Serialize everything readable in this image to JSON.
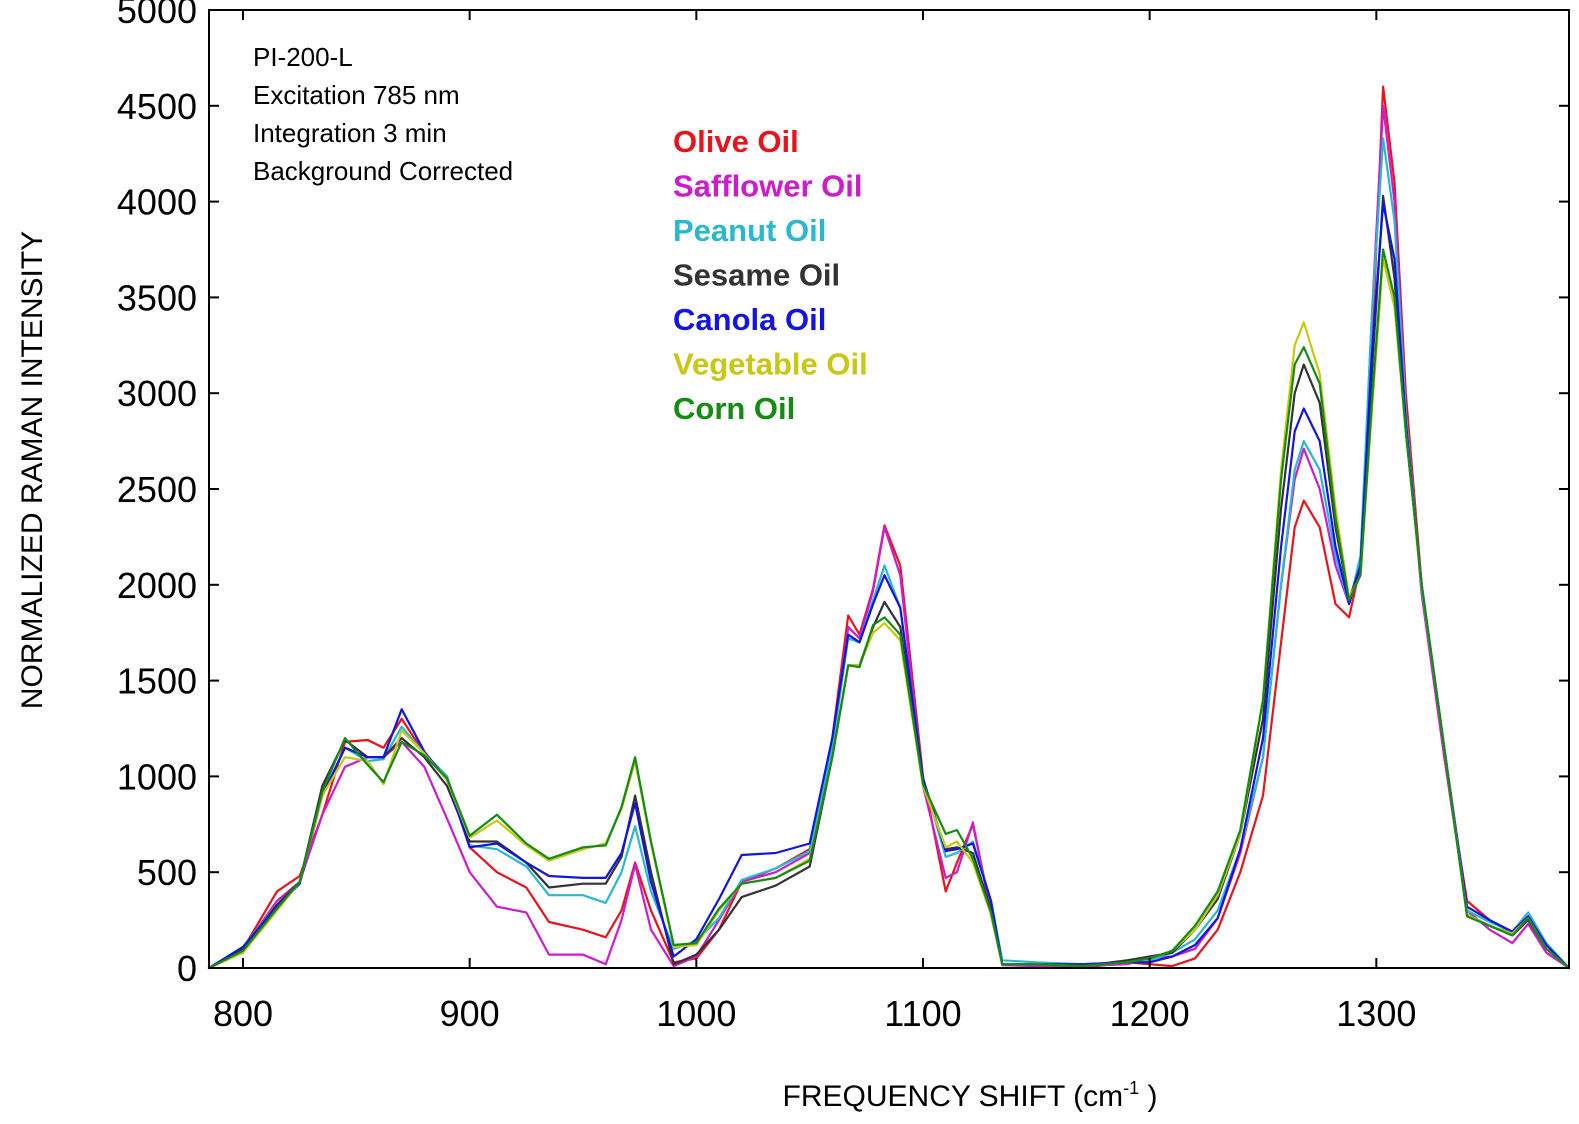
{
  "chart_data": {
    "type": "line",
    "xlabel": "FREQUENCY SHIFT (cm",
    "xlabel_sup": "-1",
    "xlabel_tail": " )",
    "ylabel": "NORMALIZED RAMAN INTENSITY",
    "xlim": [
      785,
      1385
    ],
    "ylim": [
      0,
      5000
    ],
    "x_ticks": [
      800,
      900,
      1000,
      1100,
      1200,
      1300
    ],
    "x_tick_labels": [
      "800",
      "900",
      "1000",
      "1100",
      "1200",
      "1300"
    ],
    "y_ticks": [
      0,
      500,
      1000,
      1500,
      2000,
      2500,
      3000,
      3500,
      4000,
      4500,
      5000
    ],
    "y_tick_labels": [
      "0",
      "500",
      "1000",
      "1500",
      "2000",
      "2500",
      "3000",
      "3500",
      "4000",
      "4500",
      "5000"
    ],
    "grid": false,
    "legend_position": "upper-middle",
    "annotations": [
      "PI-200-L",
      "Excitation 785 nm",
      "Integration 3 min",
      "Background Corrected"
    ],
    "x": [
      785,
      800,
      815,
      825,
      835,
      845,
      855,
      862,
      870,
      880,
      890,
      900,
      912,
      925,
      935,
      950,
      960,
      967,
      973,
      980,
      990,
      1000,
      1010,
      1020,
      1035,
      1050,
      1060,
      1067,
      1072,
      1078,
      1083,
      1090,
      1100,
      1110,
      1115,
      1122,
      1130,
      1135,
      1150,
      1170,
      1190,
      1200,
      1210,
      1220,
      1230,
      1240,
      1250,
      1258,
      1264,
      1268,
      1275,
      1282,
      1288,
      1293,
      1298,
      1303,
      1308,
      1313,
      1320,
      1330,
      1340,
      1350,
      1360,
      1367,
      1375,
      1385
    ],
    "series": [
      {
        "name": "Olive Oil",
        "color": "#e8141c",
        "values": [
          0,
          100,
          400,
          480,
          800,
          1180,
          1190,
          1150,
          1300,
          1120,
          1000,
          630,
          500,
          420,
          240,
          200,
          160,
          300,
          550,
          300,
          30,
          50,
          200,
          450,
          520,
          620,
          1200,
          1840,
          1740,
          1980,
          2310,
          2100,
          1000,
          400,
          550,
          750,
          300,
          20,
          20,
          0,
          30,
          20,
          10,
          50,
          200,
          500,
          900,
          1700,
          2300,
          2440,
          2300,
          1900,
          1830,
          2100,
          3200,
          4600,
          4100,
          3000,
          2000,
          1100,
          350,
          250,
          180,
          250,
          100,
          0
        ]
      },
      {
        "name": "Safflower Oil",
        "color": "#cc1ccc",
        "values": [
          0,
          100,
          350,
          450,
          800,
          1050,
          1100,
          1100,
          1180,
          1050,
          780,
          500,
          320,
          290,
          70,
          70,
          20,
          250,
          540,
          200,
          10,
          60,
          250,
          450,
          500,
          600,
          1150,
          1780,
          1720,
          1970,
          2300,
          2050,
          950,
          470,
          500,
          760,
          280,
          15,
          10,
          10,
          20,
          50,
          60,
          100,
          260,
          600,
          1100,
          2000,
          2550,
          2710,
          2500,
          2100,
          1900,
          2100,
          3400,
          4500,
          4000,
          2900,
          1950,
          1100,
          300,
          200,
          130,
          230,
          80,
          0
        ]
      },
      {
        "name": "Peanut Oil",
        "color": "#2ab8d0",
        "values": [
          0,
          110,
          330,
          450,
          900,
          1150,
          1080,
          1090,
          1260,
          1120,
          1000,
          640,
          620,
          530,
          380,
          380,
          340,
          500,
          740,
          400,
          100,
          140,
          260,
          460,
          520,
          610,
          1150,
          1720,
          1700,
          1920,
          2100,
          1880,
          990,
          580,
          600,
          660,
          350,
          40,
          30,
          20,
          30,
          40,
          80,
          150,
          300,
          620,
          1100,
          2000,
          2600,
          2750,
          2600,
          2150,
          1900,
          2150,
          3400,
          4330,
          3900,
          2900,
          1980,
          1150,
          300,
          240,
          190,
          290,
          130,
          0
        ]
      },
      {
        "name": "Sesame Oil",
        "color": "#333333",
        "values": [
          0,
          100,
          330,
          450,
          950,
          1190,
          1100,
          1100,
          1200,
          1100,
          950,
          660,
          660,
          550,
          420,
          440,
          440,
          580,
          900,
          500,
          20,
          70,
          200,
          370,
          430,
          530,
          1100,
          1580,
          1580,
          1780,
          1910,
          1780,
          970,
          620,
          630,
          600,
          300,
          20,
          20,
          10,
          40,
          60,
          80,
          200,
          360,
          700,
          1300,
          2400,
          3000,
          3150,
          2950,
          2300,
          1920,
          2100,
          3100,
          4030,
          3600,
          2800,
          2000,
          1150,
          280,
          220,
          170,
          250,
          100,
          0
        ]
      },
      {
        "name": "Canola Oil",
        "color": "#1414e0",
        "values": [
          0,
          110,
          320,
          440,
          900,
          1150,
          1100,
          1100,
          1350,
          1130,
          980,
          630,
          650,
          550,
          480,
          470,
          470,
          600,
          860,
          450,
          60,
          150,
          360,
          590,
          600,
          650,
          1200,
          1740,
          1700,
          1900,
          2050,
          1880,
          990,
          610,
          620,
          650,
          350,
          20,
          20,
          20,
          30,
          30,
          60,
          120,
          260,
          620,
          1200,
          2200,
          2800,
          2920,
          2750,
          2200,
          1900,
          2100,
          3200,
          3990,
          3700,
          2850,
          2000,
          1150,
          320,
          250,
          190,
          270,
          120,
          0
        ]
      },
      {
        "name": "Vegetable Oil",
        "color": "#c8c814",
        "values": [
          0,
          80,
          300,
          450,
          900,
          1100,
          1080,
          960,
          1240,
          1120,
          980,
          680,
          770,
          640,
          560,
          620,
          650,
          830,
          1080,
          650,
          110,
          120,
          300,
          440,
          470,
          570,
          1100,
          1580,
          1580,
          1750,
          1800,
          1710,
          950,
          630,
          660,
          550,
          280,
          20,
          20,
          10,
          30,
          50,
          90,
          200,
          380,
          700,
          1400,
          2600,
          3250,
          3370,
          3100,
          2400,
          1930,
          2050,
          2900,
          3700,
          3450,
          2800,
          2000,
          1150,
          280,
          220,
          180,
          260,
          100,
          0
        ]
      },
      {
        "name": "Corn Oil",
        "color": "#148c14",
        "values": [
          0,
          90,
          310,
          450,
          920,
          1200,
          1060,
          970,
          1180,
          1110,
          990,
          690,
          800,
          650,
          570,
          630,
          640,
          840,
          1100,
          660,
          120,
          130,
          310,
          440,
          470,
          560,
          1100,
          1580,
          1570,
          1790,
          1830,
          1740,
          960,
          700,
          720,
          570,
          290,
          20,
          20,
          10,
          30,
          50,
          90,
          220,
          400,
          720,
          1400,
          2550,
          3150,
          3240,
          3050,
          2350,
          1920,
          2050,
          2950,
          3750,
          3500,
          2800,
          2000,
          1150,
          270,
          220,
          170,
          260,
          100,
          0
        ]
      }
    ]
  }
}
